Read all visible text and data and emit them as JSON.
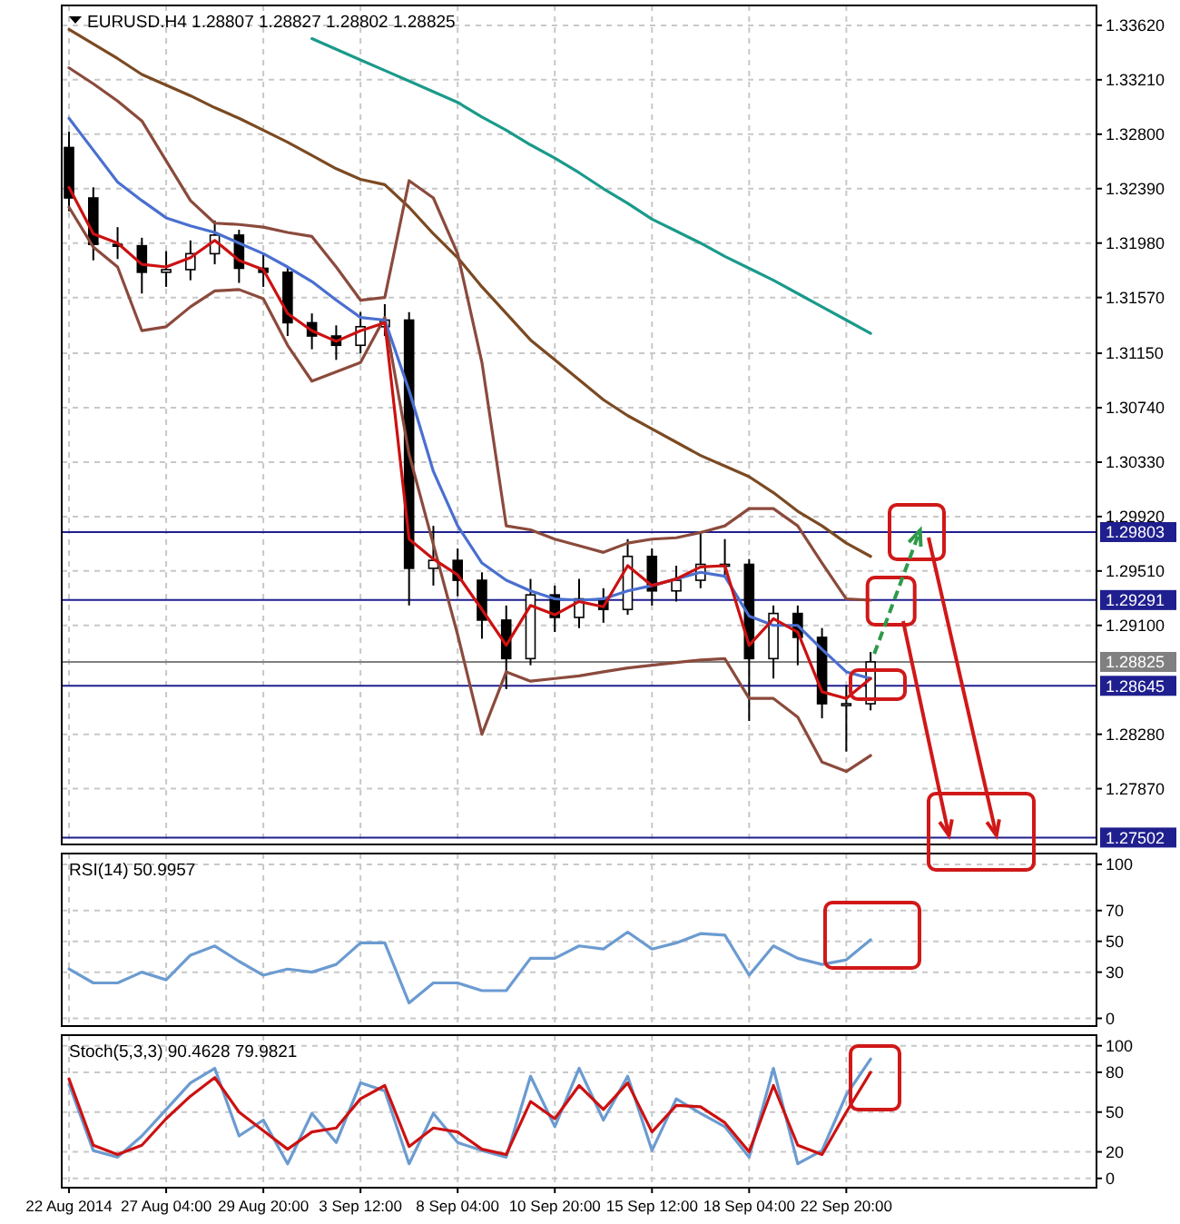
{
  "chart_data": [
    {
      "type": "candlestick",
      "title": "EURUSD.H4  1.28807 1.28827 1.28802 1.28825",
      "tick_labels": "y",
      "grid": true,
      "categories": [
        null,
        null,
        null,
        null,
        null,
        null,
        null,
        null,
        null,
        null,
        null,
        null,
        null,
        null,
        null,
        null,
        null,
        null,
        null,
        null,
        null,
        null,
        null,
        null,
        null,
        null,
        null,
        null,
        null,
        null,
        null,
        null,
        null,
        null,
        null,
        null,
        null,
        null,
        null,
        null,
        null,
        null,
        null
      ],
      "ohlc": [
        [
          1.327,
          1.3282,
          1.3222,
          1.3232
        ],
        [
          1.3232,
          1.324,
          1.3185,
          1.3197
        ],
        [
          1.3197,
          1.321,
          1.3186,
          1.3196
        ],
        [
          1.3196,
          1.3202,
          1.316,
          1.3176
        ],
        [
          1.3176,
          1.3192,
          1.3165,
          1.3178
        ],
        [
          1.3178,
          1.32,
          1.317,
          1.319
        ],
        [
          1.319,
          1.3215,
          1.3182,
          1.3204
        ],
        [
          1.3204,
          1.3208,
          1.3168,
          1.3179
        ],
        [
          1.3179,
          1.319,
          1.3165,
          1.3176
        ],
        [
          1.3176,
          1.318,
          1.3128,
          1.3138
        ],
        [
          1.3138,
          1.3145,
          1.3118,
          1.3128
        ],
        [
          1.3128,
          1.3136,
          1.311,
          1.3121
        ],
        [
          1.3121,
          1.3146,
          1.3115,
          1.3135
        ],
        [
          1.3135,
          1.3152,
          1.3128,
          1.314
        ],
        [
          1.314,
          1.3146,
          1.2925,
          1.2953
        ],
        [
          1.2953,
          1.2985,
          1.294,
          1.2959
        ],
        [
          1.2959,
          1.2968,
          1.2932,
          1.2944
        ],
        [
          1.2944,
          1.295,
          1.29,
          1.2914
        ],
        [
          1.2914,
          1.2925,
          1.2862,
          1.2885
        ],
        [
          1.2885,
          1.2945,
          1.288,
          1.2933
        ],
        [
          1.2933,
          1.294,
          1.2905,
          1.2916
        ],
        [
          1.2916,
          1.2945,
          1.2908,
          1.293
        ],
        [
          1.293,
          1.2938,
          1.2912,
          1.2922
        ],
        [
          1.2922,
          1.2975,
          1.2918,
          1.2962
        ],
        [
          1.2962,
          1.2968,
          1.2925,
          1.2936
        ],
        [
          1.2936,
          1.2955,
          1.2928,
          1.2944
        ],
        [
          1.2944,
          1.298,
          1.2938,
          1.2956
        ],
        [
          1.2956,
          1.2975,
          1.2948,
          1.2956
        ],
        [
          1.2956,
          1.296,
          1.2838,
          1.2885
        ],
        [
          1.2885,
          1.2925,
          1.287,
          1.2919
        ],
        [
          1.2919,
          1.2925,
          1.288,
          1.2901
        ],
        [
          1.2901,
          1.2908,
          1.284,
          1.2851
        ],
        [
          1.2851,
          1.2865,
          1.2815,
          1.2851
        ],
        [
          1.2851,
          1.289,
          1.2846,
          1.28825
        ],
        null,
        null,
        null,
        null,
        null,
        null,
        null,
        null,
        null
      ],
      "series": [
        {
          "type": "line",
          "color": "#1a9a8a",
          "values": [
            null,
            null,
            null,
            null,
            null,
            null,
            null,
            null,
            null,
            null,
            1.3352,
            1.3344,
            1.3336,
            1.3328,
            1.332,
            1.3312,
            1.3304,
            1.3293,
            1.3283,
            1.3272,
            1.3262,
            1.3251,
            1.3239,
            1.3228,
            1.3216,
            1.3207,
            1.3198,
            1.3188,
            1.3179,
            1.317,
            1.316,
            1.315,
            1.314,
            1.313,
            null,
            null,
            null,
            null,
            null,
            null,
            null,
            null,
            null
          ]
        },
        {
          "type": "line",
          "color": "#7b4a22",
          "values": [
            1.3359,
            1.3348,
            1.3337,
            1.3325,
            1.3317,
            1.3309,
            1.33,
            1.3292,
            1.3283,
            1.3274,
            1.3264,
            1.3254,
            1.3246,
            1.3242,
            1.3225,
            1.3205,
            1.3187,
            1.3165,
            1.3145,
            1.3125,
            1.311,
            1.3095,
            1.308,
            1.3068,
            1.3058,
            1.3048,
            1.3038,
            1.303,
            1.3022,
            1.301,
            1.2996,
            1.2985,
            1.2972,
            1.2962,
            null,
            null,
            null,
            null,
            null,
            null,
            null,
            null,
            null
          ]
        },
        {
          "type": "line",
          "color": "#8b4a3c",
          "values": [
            1.333,
            1.3318,
            1.3305,
            1.329,
            1.326,
            1.323,
            1.3213,
            1.3212,
            1.321,
            1.3206,
            1.3203,
            1.318,
            1.3155,
            1.3157,
            1.3245,
            1.3232,
            1.319,
            1.3108,
            1.2985,
            1.2982,
            1.2975,
            1.297,
            1.2965,
            1.2972,
            1.2975,
            1.2976,
            1.298,
            1.2985,
            1.2998,
            1.2998,
            1.2985,
            1.2957,
            1.293,
            1.2929,
            null,
            null,
            null,
            null,
            null,
            null,
            null,
            null,
            null
          ]
        },
        {
          "type": "line",
          "color": "#8b4a3c",
          "values": [
            1.3225,
            1.3195,
            1.318,
            1.3132,
            1.3135,
            1.315,
            1.3162,
            1.3163,
            1.3156,
            1.3121,
            1.3094,
            1.3101,
            1.3108,
            1.3142,
            1.3039,
            1.2971,
            1.2903,
            1.2828,
            1.2875,
            1.2868,
            1.287,
            1.2872,
            1.2875,
            1.2878,
            1.288,
            1.2882,
            1.2884,
            1.2885,
            1.2855,
            1.2855,
            1.2841,
            1.2807,
            1.28,
            1.2812,
            null,
            null,
            null,
            null,
            null,
            null,
            null,
            null,
            null
          ]
        },
        {
          "type": "line",
          "color": "#4a6fd0",
          "values": [
            1.3292,
            1.3268,
            1.3244,
            1.323,
            1.3217,
            1.3211,
            1.3206,
            1.3198,
            1.319,
            1.318,
            1.3169,
            1.3155,
            1.3142,
            1.314,
            1.3087,
            1.3026,
            1.2985,
            1.2957,
            1.2944,
            1.2936,
            1.293,
            1.2929,
            1.293,
            1.2936,
            1.294,
            1.2945,
            1.295,
            1.2947,
            1.2917,
            1.291,
            1.291,
            1.2892,
            1.2875,
            1.287,
            null,
            null,
            null,
            null,
            null,
            null,
            null,
            null,
            null
          ]
        },
        {
          "type": "line",
          "color": "#cc1111",
          "values": [
            1.324,
            1.3205,
            1.3198,
            1.3182,
            1.318,
            1.3187,
            1.32,
            1.3185,
            1.3178,
            1.3145,
            1.3132,
            1.3124,
            1.3132,
            1.3138,
            1.2975,
            1.296,
            1.2948,
            1.2922,
            1.2895,
            1.2925,
            1.2918,
            1.2928,
            1.2924,
            1.2955,
            1.294,
            1.2945,
            1.2954,
            1.2955,
            1.2895,
            1.2915,
            1.2905,
            1.286,
            1.2855,
            1.287,
            null,
            null,
            null,
            null,
            null,
            null,
            null,
            null,
            null
          ]
        }
      ],
      "ylim": [
        1.2745,
        1.3377
      ],
      "yticks": [
        {
          "value": 1.3362,
          "label": "1.33620"
        },
        {
          "value": 1.3321,
          "label": "1.33210"
        },
        {
          "value": 1.328,
          "label": "1.32800"
        },
        {
          "value": 1.3239,
          "label": "1.32390"
        },
        {
          "value": 1.3198,
          "label": "1.31980"
        },
        {
          "value": 1.3157,
          "label": "1.31570"
        },
        {
          "value": 1.3115,
          "label": "1.31150"
        },
        {
          "value": 1.3074,
          "label": "1.30740"
        },
        {
          "value": 1.3033,
          "label": "1.30330"
        },
        {
          "value": 1.2992,
          "label": "1.29920"
        },
        {
          "value": 1.2951,
          "label": "1.29510"
        },
        {
          "value": 1.291,
          "label": "1.29100"
        },
        {
          "value": 1.2828,
          "label": "1.28280"
        },
        {
          "value": 1.2787,
          "label": "1.27870"
        }
      ],
      "ref_lines": [
        {
          "axis": "y",
          "value": 1.29803,
          "label": "1.29803",
          "color": "#1f1f8f"
        },
        {
          "axis": "y",
          "value": 1.29291,
          "label": "1.29291",
          "color": "#1f1f8f"
        },
        {
          "axis": "y",
          "value": 1.28825,
          "label": "1.28825",
          "color": "#808080"
        },
        {
          "axis": "y",
          "value": 1.28645,
          "label": "1.28645",
          "color": "#1f1f8f"
        },
        {
          "axis": "y",
          "value": 1.27502,
          "label": "1.27502",
          "color": "#1f1f8f"
        }
      ]
    },
    {
      "type": "line",
      "title": "RSI(14) 50.9957",
      "tick_labels": "y",
      "grid": true,
      "categories": [
        null,
        null,
        null,
        null,
        null,
        null,
        null,
        null,
        null,
        null,
        null,
        null,
        null,
        null,
        null,
        null,
        null,
        null,
        null,
        null,
        null,
        null,
        null,
        null,
        null,
        null,
        null,
        null,
        null,
        null,
        null,
        null,
        null,
        null,
        null,
        null,
        null,
        null,
        null,
        null,
        null,
        null,
        null
      ],
      "series": [
        {
          "color": "#6b9bd1",
          "values": [
            32,
            23,
            23,
            30,
            25,
            41,
            47,
            37,
            28,
            32,
            30,
            35,
            49,
            49,
            10,
            23,
            23,
            18,
            18,
            39,
            39,
            47,
            45,
            56,
            45,
            49,
            55,
            54,
            28,
            47,
            39,
            35,
            38,
            51,
            null,
            null,
            null,
            null,
            null,
            null,
            null,
            null,
            null
          ]
        }
      ],
      "ylim": [
        -5,
        107
      ],
      "yticks": [
        0,
        30,
        50,
        70,
        100
      ]
    },
    {
      "type": "line",
      "title": "Stoch(5,3,3) 90.4628 79.9821",
      "grid": true,
      "categories": [
        "22 Aug 2014",
        null,
        null,
        null,
        "27 Aug 04:00",
        null,
        null,
        null,
        "29 Aug 20:00",
        null,
        null,
        null,
        "3 Sep 12:00",
        null,
        null,
        null,
        "8 Sep 04:00",
        null,
        null,
        null,
        "10 Sep 20:00",
        null,
        null,
        null,
        "15 Sep 12:00",
        null,
        null,
        null,
        "18 Sep 04:00",
        null,
        null,
        null,
        "22 Sep 20:00",
        null,
        null,
        null,
        null,
        null,
        null,
        null,
        null,
        null,
        null
      ],
      "series": [
        {
          "color": "#6b9bd1",
          "values": [
            71,
            21,
            16,
            32,
            52,
            72,
            83,
            32,
            44,
            11,
            49,
            27,
            72,
            66,
            11,
            49,
            27,
            21,
            16,
            77,
            39,
            83,
            44,
            77,
            21,
            60,
            49,
            39,
            16,
            83,
            11,
            21,
            63,
            90,
            null,
            null,
            null,
            null,
            null,
            null,
            null,
            null,
            null
          ]
        },
        {
          "color": "#cc1111",
          "values": [
            75,
            25,
            18,
            25,
            45,
            62,
            76,
            50,
            36,
            22,
            35,
            38,
            60,
            70,
            24,
            38,
            35,
            22,
            18,
            58,
            45,
            70,
            52,
            72,
            35,
            55,
            54,
            42,
            20,
            70,
            25,
            18,
            50,
            80,
            null,
            null,
            null,
            null,
            null,
            null,
            null,
            null,
            null
          ]
        }
      ],
      "ylim": [
        -7,
        108
      ],
      "yticks": [
        0,
        20,
        50,
        80,
        100
      ]
    }
  ]
}
